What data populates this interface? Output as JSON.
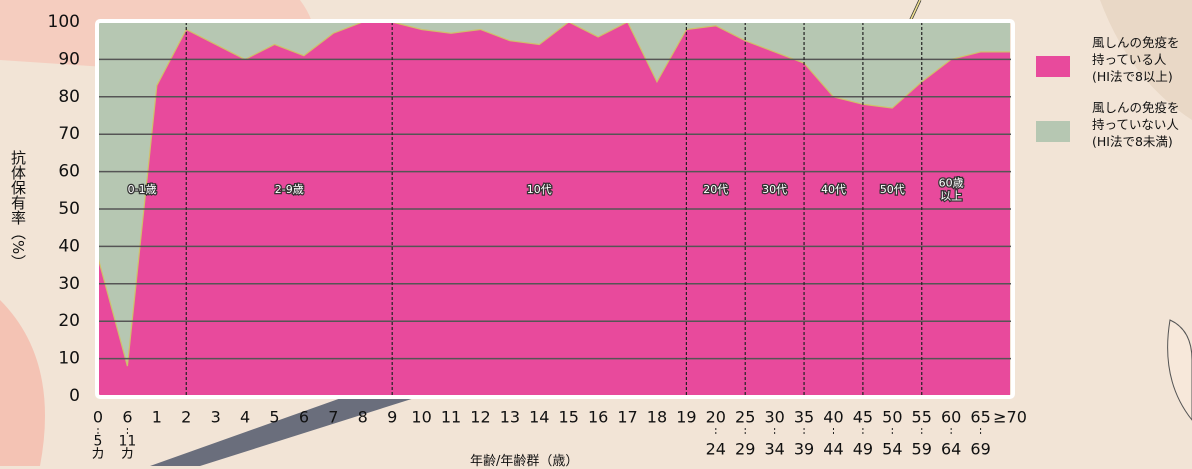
{
  "chart_data": {
    "type": "stacked-area",
    "y_label": "抗体保有率（%）",
    "x_label": "年齢/年齢群（歳）",
    "categories": [
      "0",
      "6",
      "1",
      "2",
      "3",
      "4",
      "5",
      "6",
      "7",
      "8",
      "9",
      "10",
      "11",
      "12",
      "13",
      "14",
      "15",
      "16",
      "17",
      "18",
      "19",
      "20",
      "25",
      "30",
      "35",
      "40",
      "45",
      "50",
      "55",
      "60",
      "65",
      "≥70"
    ],
    "category_sublabels": [
      "5\nカ",
      "11\nカ",
      null,
      null,
      null,
      null,
      null,
      null,
      null,
      null,
      null,
      null,
      null,
      null,
      null,
      null,
      null,
      null,
      null,
      null,
      null,
      "24",
      "29",
      "34",
      "39",
      "44",
      "49",
      "54",
      "59",
      "64",
      "69",
      null
    ],
    "groups": [
      "0-1歳",
      "2-9歳",
      "10代",
      "20代",
      "30代",
      "40代",
      "50代",
      "60歳\n以上"
    ],
    "series": [
      {
        "name": "風しんの免疫を\n持っている人\n(HI法で8以上)",
        "color": "#e84a9c",
        "values": [
          37,
          8,
          83,
          98,
          94,
          90,
          94,
          91,
          97,
          100,
          100,
          98,
          97,
          98,
          95,
          94,
          100,
          96,
          100,
          84,
          98,
          99,
          95,
          92,
          89,
          80,
          78,
          77,
          84,
          90,
          92,
          92
        ]
      },
      {
        "name": "風しんの免疫を\n持っていない人\n(HI法で8未満)",
        "color": "#b6c7b2",
        "values": [
          63,
          92,
          17,
          2,
          6,
          10,
          6,
          9,
          3,
          0,
          0,
          2,
          3,
          2,
          5,
          6,
          0,
          4,
          0,
          16,
          2,
          1,
          5,
          8,
          11,
          20,
          22,
          23,
          16,
          10,
          8,
          8
        ]
      }
    ],
    "ylim": [
      0,
      100
    ],
    "yticks": [
      0,
      10,
      20,
      30,
      40,
      50,
      60,
      70,
      80,
      90,
      100
    ],
    "grid": true
  }
}
